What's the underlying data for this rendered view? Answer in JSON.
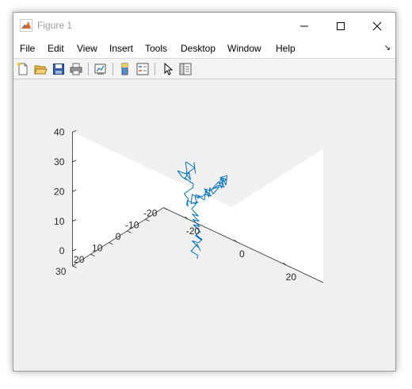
{
  "window": {
    "title": "Figure 1"
  },
  "menu": [
    "File",
    "Edit",
    "View",
    "Insert",
    "Tools",
    "Desktop",
    "Window",
    "Help"
  ],
  "toolbar": {
    "buttons": [
      "new-figure",
      "open-file",
      "save-figure",
      "print-figure",
      "link-plot",
      "insert-colorbar",
      "insert-legend",
      "edit-plot",
      "open-property-inspector"
    ]
  },
  "colors": {
    "line": "#0072BD",
    "axes_bg": "#ffffff",
    "figure_bg": "#f0f0f0"
  },
  "chart_data": {
    "type": "line",
    "view": "3d",
    "title": "",
    "xlabel": "",
    "ylabel": "",
    "zlabel": "",
    "x_ticks": [
      -20,
      0,
      20
    ],
    "y_ticks": [
      -20,
      -10,
      0,
      10,
      20,
      30
    ],
    "z_ticks": [
      0,
      10,
      20,
      30,
      40
    ],
    "xlim": [
      -30,
      35
    ],
    "ylim": [
      -20,
      30
    ],
    "zlim": [
      -5,
      40
    ],
    "grid": false,
    "series": [
      {
        "x": [
          0,
          1,
          -1,
          0,
          2,
          3,
          1,
          2,
          4,
          3,
          5,
          4,
          6,
          5,
          3,
          4,
          2,
          3,
          1,
          2,
          0,
          1,
          -1,
          -2,
          0,
          1,
          3,
          2,
          4,
          3,
          5,
          6,
          4,
          5,
          7,
          6,
          8,
          7,
          5,
          6,
          4,
          3,
          5,
          4,
          2,
          3,
          1,
          0,
          2,
          1,
          -1,
          -2,
          -3,
          -1,
          -2,
          -4,
          -5,
          -3,
          -4,
          -2,
          -3,
          -1,
          0,
          -2,
          -1,
          1,
          0,
          2,
          3,
          1,
          2,
          0,
          -1,
          1,
          0,
          -2,
          -1,
          0
        ],
        "y": [
          2,
          3,
          4,
          2,
          3,
          5,
          6,
          4,
          5,
          7,
          6,
          8,
          9,
          7,
          8,
          6,
          7,
          5,
          6,
          4,
          5,
          3,
          4,
          2,
          1,
          3,
          2,
          0,
          1,
          -1,
          0,
          -2,
          -1,
          -3,
          -2,
          -4,
          -3,
          -5,
          -4,
          -6,
          -5,
          -7,
          -6,
          -4,
          -5,
          -3,
          -4,
          -2,
          -3,
          -1,
          -2,
          0,
          -1,
          1,
          0,
          2,
          1,
          3,
          2,
          4,
          5,
          3,
          4,
          6,
          5,
          7,
          8,
          6,
          7,
          5,
          6,
          8,
          7,
          9,
          8,
          10,
          9,
          8
        ],
        "z": [
          -2,
          0,
          1,
          3,
          2,
          4,
          6,
          5,
          7,
          9,
          8,
          10,
          12,
          11,
          13,
          12,
          14,
          13,
          15,
          14,
          16,
          18,
          17,
          19,
          18,
          20,
          19,
          21,
          20,
          22,
          21,
          23,
          22,
          24,
          23,
          25,
          24,
          26,
          25,
          24,
          22,
          23,
          21,
          22,
          20,
          21,
          19,
          20,
          18,
          19,
          17,
          18,
          16,
          17,
          15,
          16,
          14,
          15,
          16,
          18,
          20,
          22,
          24,
          26,
          28,
          27,
          29,
          31,
          30,
          32,
          31,
          33,
          32,
          31,
          29,
          30,
          28,
          27
        ]
      }
    ]
  }
}
